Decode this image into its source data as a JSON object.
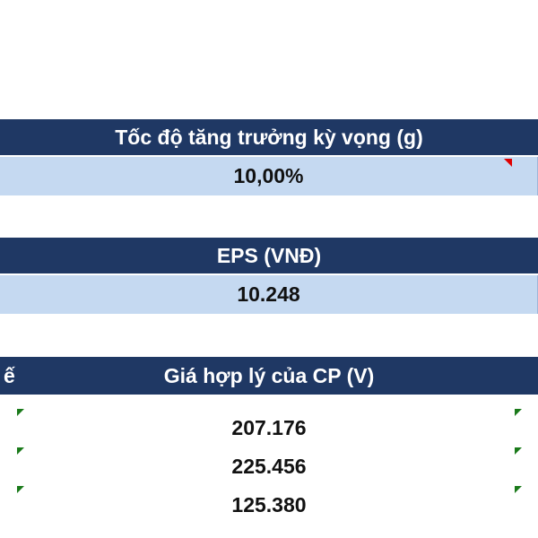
{
  "sections": [
    {
      "header": "Tốc độ tăng trưởng kỳ vọng (g)",
      "rows": [
        "10,00%"
      ]
    },
    {
      "header": "EPS (VNĐ)",
      "rows": [
        "10.248"
      ]
    },
    {
      "header_left": "ế",
      "header": "Giá hợp lý của CP (V)",
      "rows": [
        "207.176",
        "225.456",
        "125.380"
      ]
    }
  ]
}
